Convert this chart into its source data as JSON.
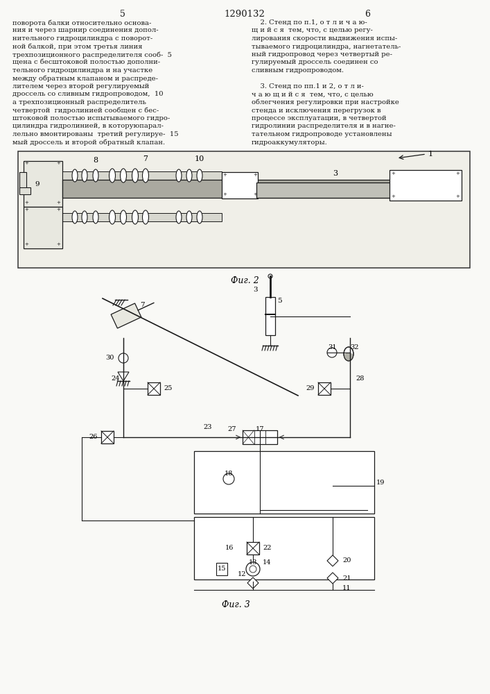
{
  "bg_color": "#f9f9f6",
  "lc": "#1a1a1a",
  "page_num_left": "5",
  "page_num_center": "1290132",
  "page_num_right": "6",
  "fig2_caption": "Фиг. 2",
  "fig3_caption": "Фиг. 3",
  "col_left_lines": [
    "поворота балки относительно основа-",
    "ния и через шарнир соединения допол-",
    "нительного гидроцилиндра с поворот-",
    "ной балкой, при этом третья линия",
    "трехпозиционного распределителя сооб-  5",
    "щена с бесштоковой полостью дополни-",
    "тельного гидроцилиндра и на участке",
    "между обратным клапаном и распреде-",
    "лителем через второй регулируемый",
    "дроссель со сливным гидропроводом,  10",
    "а трехпозиционный распределитель",
    "четвертой  гидролинией сообщен с бес-",
    "штоковой полостью испытываемого гидро-",
    "цилиндра гидролинией, в которуюпарал-",
    "лельно вмонтированы  третий регулируе-  15",
    "мый дроссель и второй обратный клапан."
  ],
  "col_right_lines": [
    "    2. Стенд по п.1, о т л и ч а ю-",
    "щ и й с я  тем, что, с целью регу-",
    "лирования скорости выдвижения испы-",
    "тываемого гидроцилиндра, нагнетатель-",
    "ный гидропровод через четвертый ре-",
    "гулируемый дроссель соединен со",
    "сливным гидропроводом.",
    "",
    "    3. Стенд по пп.1 и 2, о т л и-",
    "ч а ю щ и й с я  тем, что, с целью",
    "облегчения регулировки при настройке",
    "стенда и исключения перегрузок в",
    "процессе эксплуатации, в четвертой",
    "гидролинии распределителя и в нагне-",
    "тательном гидропроводе установлены",
    "гидроаккумуляторы."
  ]
}
